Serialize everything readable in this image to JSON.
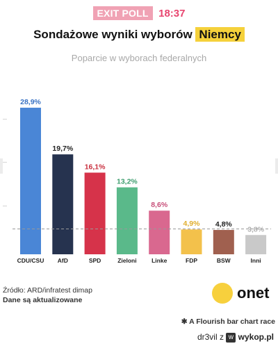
{
  "header": {
    "badge": "EXIT POLL",
    "time": "18:37",
    "title_prefix": "Sondażowe wyniki wyborów",
    "title_highlight": "Niemcy",
    "subtitle": "Poparcie w wyborach federalnych"
  },
  "footer": {
    "source": "Źródło: ARD/infratest dimap",
    "updated": "Dane są aktualizowane",
    "logo_text": "onet",
    "flourish": "A Flourish bar chart race",
    "credit_user": "dr3vil",
    "credit_sep": "z",
    "credit_site": "wykop.pl"
  },
  "colors": {
    "accent_pink": "#e8456f",
    "highlight_yellow": "#f5d13b",
    "threshold_line": "#999999"
  },
  "chart_data": {
    "type": "bar",
    "title": "Sondażowe wyniki wyborów Niemcy",
    "subtitle": "Poparcie w wyborach federalnych",
    "categories": [
      "CDU/CSU",
      "AfD",
      "SPD",
      "Zieloni",
      "Linke",
      "FDP",
      "BSW",
      "Inni"
    ],
    "values": [
      28.9,
      19.7,
      16.1,
      13.2,
      8.6,
      4.9,
      4.8,
      3.8
    ],
    "labels": [
      "28,9%",
      "19,7%",
      "16,1%",
      "13,2%",
      "8,6%",
      "4,9%",
      "4,8%",
      "3,8%"
    ],
    "colors": [
      "#4a86d6",
      "#26334f",
      "#d6334a",
      "#5ab98a",
      "#d9688f",
      "#f3c14b",
      "#a0604f",
      "#c9c9c9"
    ],
    "label_colors": [
      "#3a73c4",
      "#222222",
      "#c9303f",
      "#3e9e6f",
      "#c74f79",
      "#e0ad2c",
      "#222222",
      "#b0b0b0"
    ],
    "threshold": 5,
    "ylim": [
      0,
      30
    ],
    "grid": false
  }
}
